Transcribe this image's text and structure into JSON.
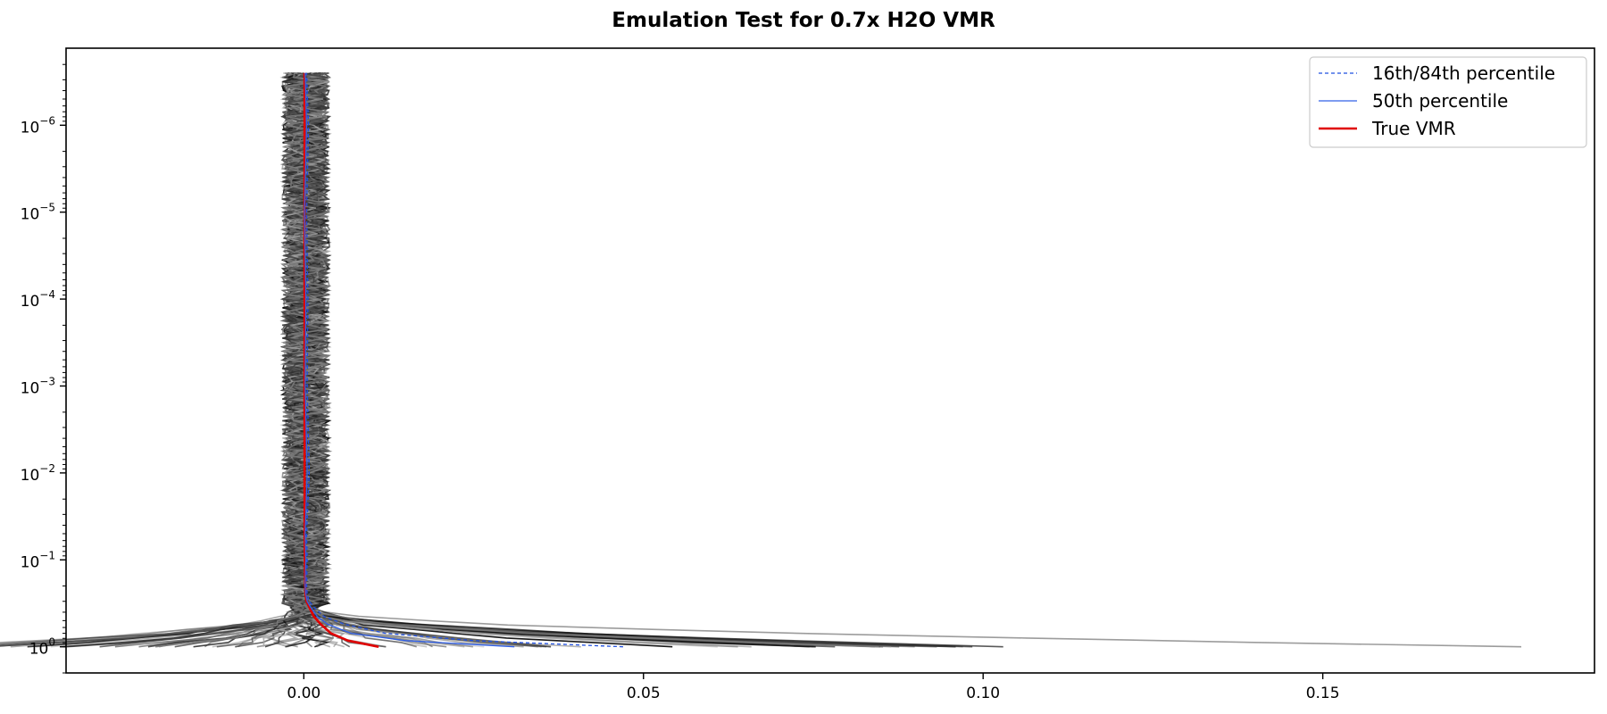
{
  "chart_data": {
    "type": "line",
    "title": "Emulation Test for 0.7x H2O VMR",
    "xlabel": "",
    "ylabel": "",
    "xlim": [
      -0.035,
      0.19
    ],
    "ylim": [
      2.0,
      1.3e-07
    ],
    "yscale": "log",
    "y_inverted": true,
    "grid": false,
    "legend_position": "top-right",
    "x_ticks": [
      {
        "value": 0.0,
        "label": "0.00"
      },
      {
        "value": 0.05,
        "label": "0.05"
      },
      {
        "value": 0.1,
        "label": "0.10"
      },
      {
        "value": 0.15,
        "label": "0.15"
      }
    ],
    "y_ticks": [
      {
        "value": 1,
        "label": "10",
        "exp": "0"
      },
      {
        "value": 0.1,
        "label": "10",
        "exp": "−1"
      },
      {
        "value": 0.01,
        "label": "10",
        "exp": "−2"
      },
      {
        "value": 0.001,
        "label": "10",
        "exp": "−3"
      },
      {
        "value": 0.0001,
        "label": "10",
        "exp": "−4"
      },
      {
        "value": 1e-05,
        "label": "10",
        "exp": "−5"
      },
      {
        "value": 1e-06,
        "label": "10",
        "exp": "−6"
      }
    ],
    "legend": [
      {
        "name": "16th/84th percentile",
        "color": "#1f4fe0",
        "style": "dashed"
      },
      {
        "name": "50th percentile",
        "color": "#3060e8",
        "style": "solid"
      },
      {
        "name": "True VMR",
        "color": "#e00000",
        "style": "solid"
      }
    ],
    "pressure_levels": [
      1.0,
      0.85,
      0.7,
      0.55,
      0.45,
      0.35,
      0.3,
      0.25,
      0.2,
      0.1,
      0.05,
      0.01,
      0.001,
      0.0001,
      1e-05,
      1e-06,
      2.5e-07
    ],
    "series": [
      {
        "name": "True VMR",
        "color": "#e00000",
        "values": [
          0.011,
          0.0065,
          0.004,
          0.0025,
          0.0015,
          0.0008,
          0.0004,
          0.00025,
          0.0002,
          0.00015,
          0.00012,
          0.0001,
          0.0001,
          0.0001,
          0.0001,
          0.0001,
          0.0001
        ]
      },
      {
        "name": "50th percentile",
        "color": "#3060e8",
        "values": [
          0.031,
          0.015,
          0.007,
          0.0035,
          0.002,
          0.001,
          0.0005,
          0.0003,
          0.0002,
          0.0003,
          0.0002,
          0.0005,
          0.0002,
          0.0003,
          0.0001,
          0.0004,
          0.0002
        ]
      },
      {
        "name": "16th/84th percentile",
        "color": "#1f4fe0",
        "values": [
          0.047,
          0.025,
          0.012,
          0.006,
          0.003,
          0.0015,
          0.0008,
          0.0005,
          0.0004,
          0.0005,
          0.0004,
          0.0008,
          0.0005,
          0.0006,
          0.0004,
          0.0007,
          0.0004
        ]
      }
    ],
    "ensemble_extremes": {
      "right_max_at_surface": 0.18,
      "left_min_at_surface": -0.025
    }
  }
}
